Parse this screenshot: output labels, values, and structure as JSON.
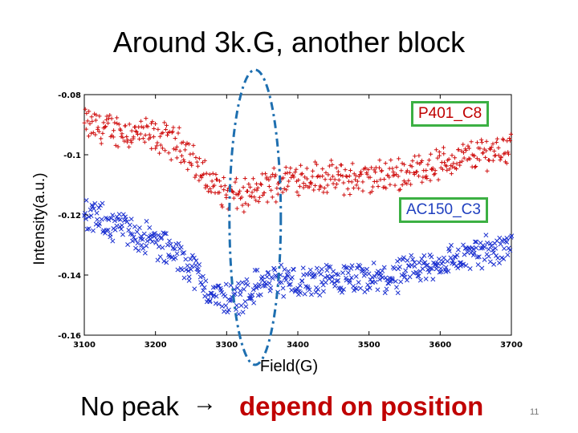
{
  "slide": {
    "title": "Around 3k.G, another block",
    "bottom_left": "No peak",
    "arrow": "→",
    "bottom_right": "depend on position",
    "page_number": "11"
  },
  "colors": {
    "series1": "#d01010",
    "series2": "#1a2fd0",
    "ellipse": "#1e6fb0",
    "legend_border": "#3cb043"
  },
  "chart_data": {
    "type": "scatter",
    "title": "",
    "xlabel": "Field(G)",
    "ylabel": "Intensity(a.u.)",
    "xlim": [
      3100,
      3700
    ],
    "ylim": [
      -0.16,
      -0.08
    ],
    "xticks": [
      3100,
      3200,
      3300,
      3400,
      3500,
      3600,
      3700
    ],
    "xtick_labels": [
      "3100",
      "3200",
      "3300",
      "3400",
      "3500",
      "3600",
      "3700"
    ],
    "yticks": [
      -0.08,
      -0.1,
      -0.12,
      -0.14,
      -0.16
    ],
    "ytick_labels": [
      "-0.08",
      "-0.1",
      "-0.12",
      "-0.14",
      "-0.16"
    ],
    "series": [
      {
        "name": "P401_C8",
        "marker": "+",
        "x": [
          3100,
          3150,
          3200,
          3240,
          3270,
          3300,
          3330,
          3360,
          3400,
          3450,
          3500,
          3550,
          3600,
          3650,
          3700
        ],
        "y": [
          -0.09,
          -0.092,
          -0.094,
          -0.097,
          -0.108,
          -0.113,
          -0.114,
          -0.11,
          -0.107,
          -0.108,
          -0.108,
          -0.106,
          -0.103,
          -0.1,
          -0.097
        ]
      },
      {
        "name": "AC150_C3",
        "marker": "x",
        "x": [
          3100,
          3150,
          3200,
          3250,
          3280,
          3310,
          3340,
          3370,
          3400,
          3450,
          3500,
          3550,
          3600,
          3650,
          3700
        ],
        "y": [
          -0.12,
          -0.124,
          -0.129,
          -0.137,
          -0.147,
          -0.148,
          -0.144,
          -0.141,
          -0.143,
          -0.142,
          -0.142,
          -0.14,
          -0.136,
          -0.133,
          -0.13
        ]
      }
    ],
    "annotations": [
      {
        "type": "ellipse",
        "label": "",
        "x_center": 3340
      }
    ]
  }
}
